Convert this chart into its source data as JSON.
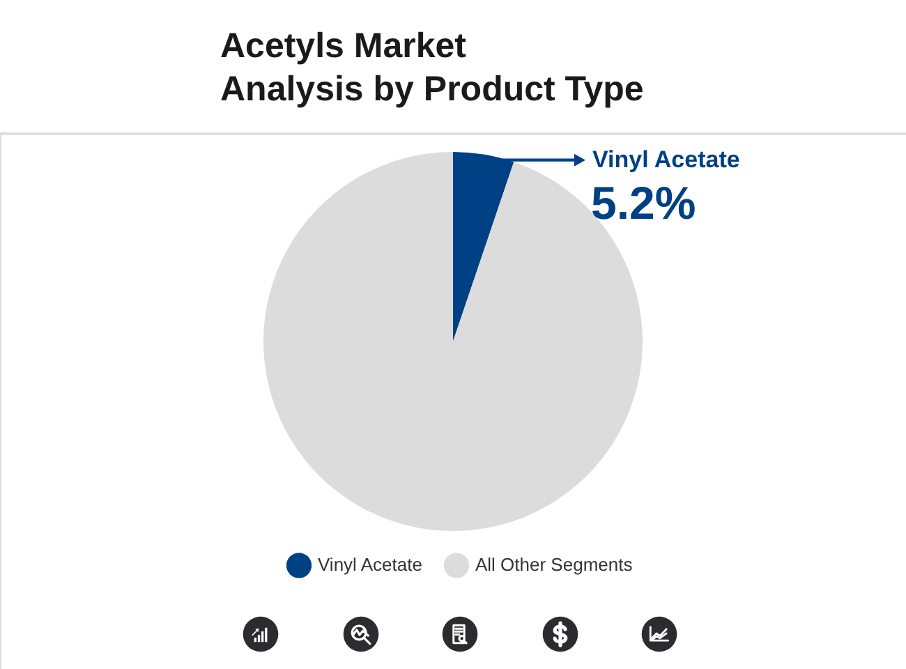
{
  "chart_data": {
    "type": "pie",
    "title": "Acetyls Market\nAnalysis by Product Type",
    "categories": [
      "Vinyl Acetate",
      "All Other Segments"
    ],
    "values": [
      5.2,
      94.8
    ],
    "colors": [
      "#004085",
      "#dcdcdc"
    ],
    "value_labels": [
      "5.2%",
      null
    ],
    "legend": "bottom"
  }
}
